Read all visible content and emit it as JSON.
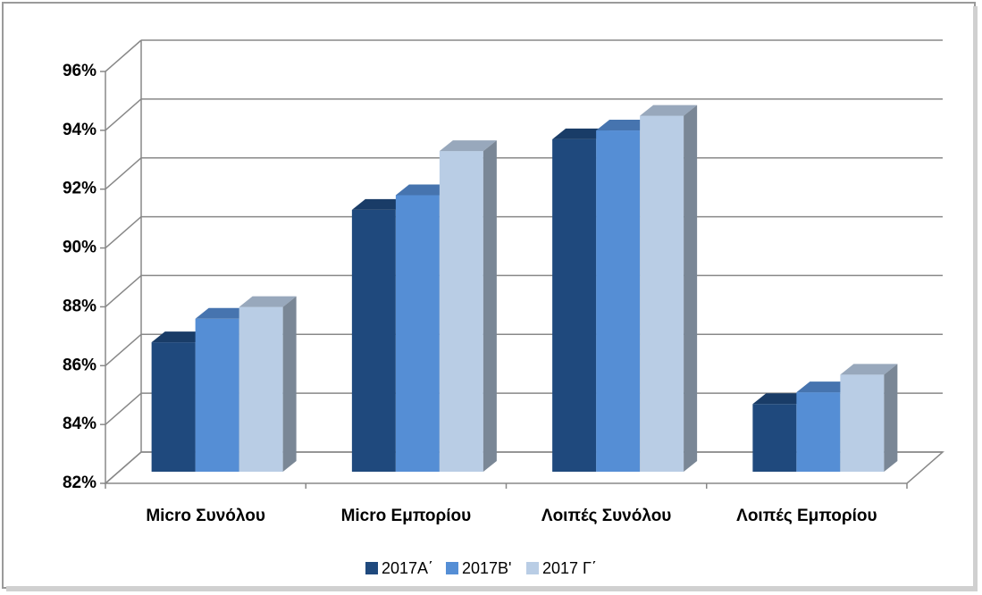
{
  "chart_data": {
    "type": "bar3d",
    "categories": [
      "Micro Συνόλου",
      "Micro Εμπορίου",
      "Λοιπές Συνόλου",
      "Λοιπές Εμπορίου"
    ],
    "series": [
      {
        "name": "2017Α΄",
        "color": "#1f497d",
        "values": [
          86.4,
          90.9,
          93.3,
          84.3
        ]
      },
      {
        "name": "2017Β'",
        "color": "#558ed5",
        "values": [
          87.2,
          91.4,
          93.6,
          84.7
        ]
      },
      {
        "name": "2017 Γ΄",
        "color": "#b9cde5",
        "values": [
          87.6,
          92.9,
          94.1,
          85.3
        ]
      }
    ],
    "ylim": [
      82,
      96
    ],
    "yticks": [
      {
        "value": 82,
        "label": "82%"
      },
      {
        "value": 84,
        "label": "84%"
      },
      {
        "value": 86,
        "label": "86%"
      },
      {
        "value": 88,
        "label": "88%"
      },
      {
        "value": 90,
        "label": "90%"
      },
      {
        "value": 92,
        "label": "92%"
      },
      {
        "value": 94,
        "label": "94%"
      },
      {
        "value": 96,
        "label": "96%"
      }
    ],
    "grid": true,
    "legend": "bottom"
  }
}
